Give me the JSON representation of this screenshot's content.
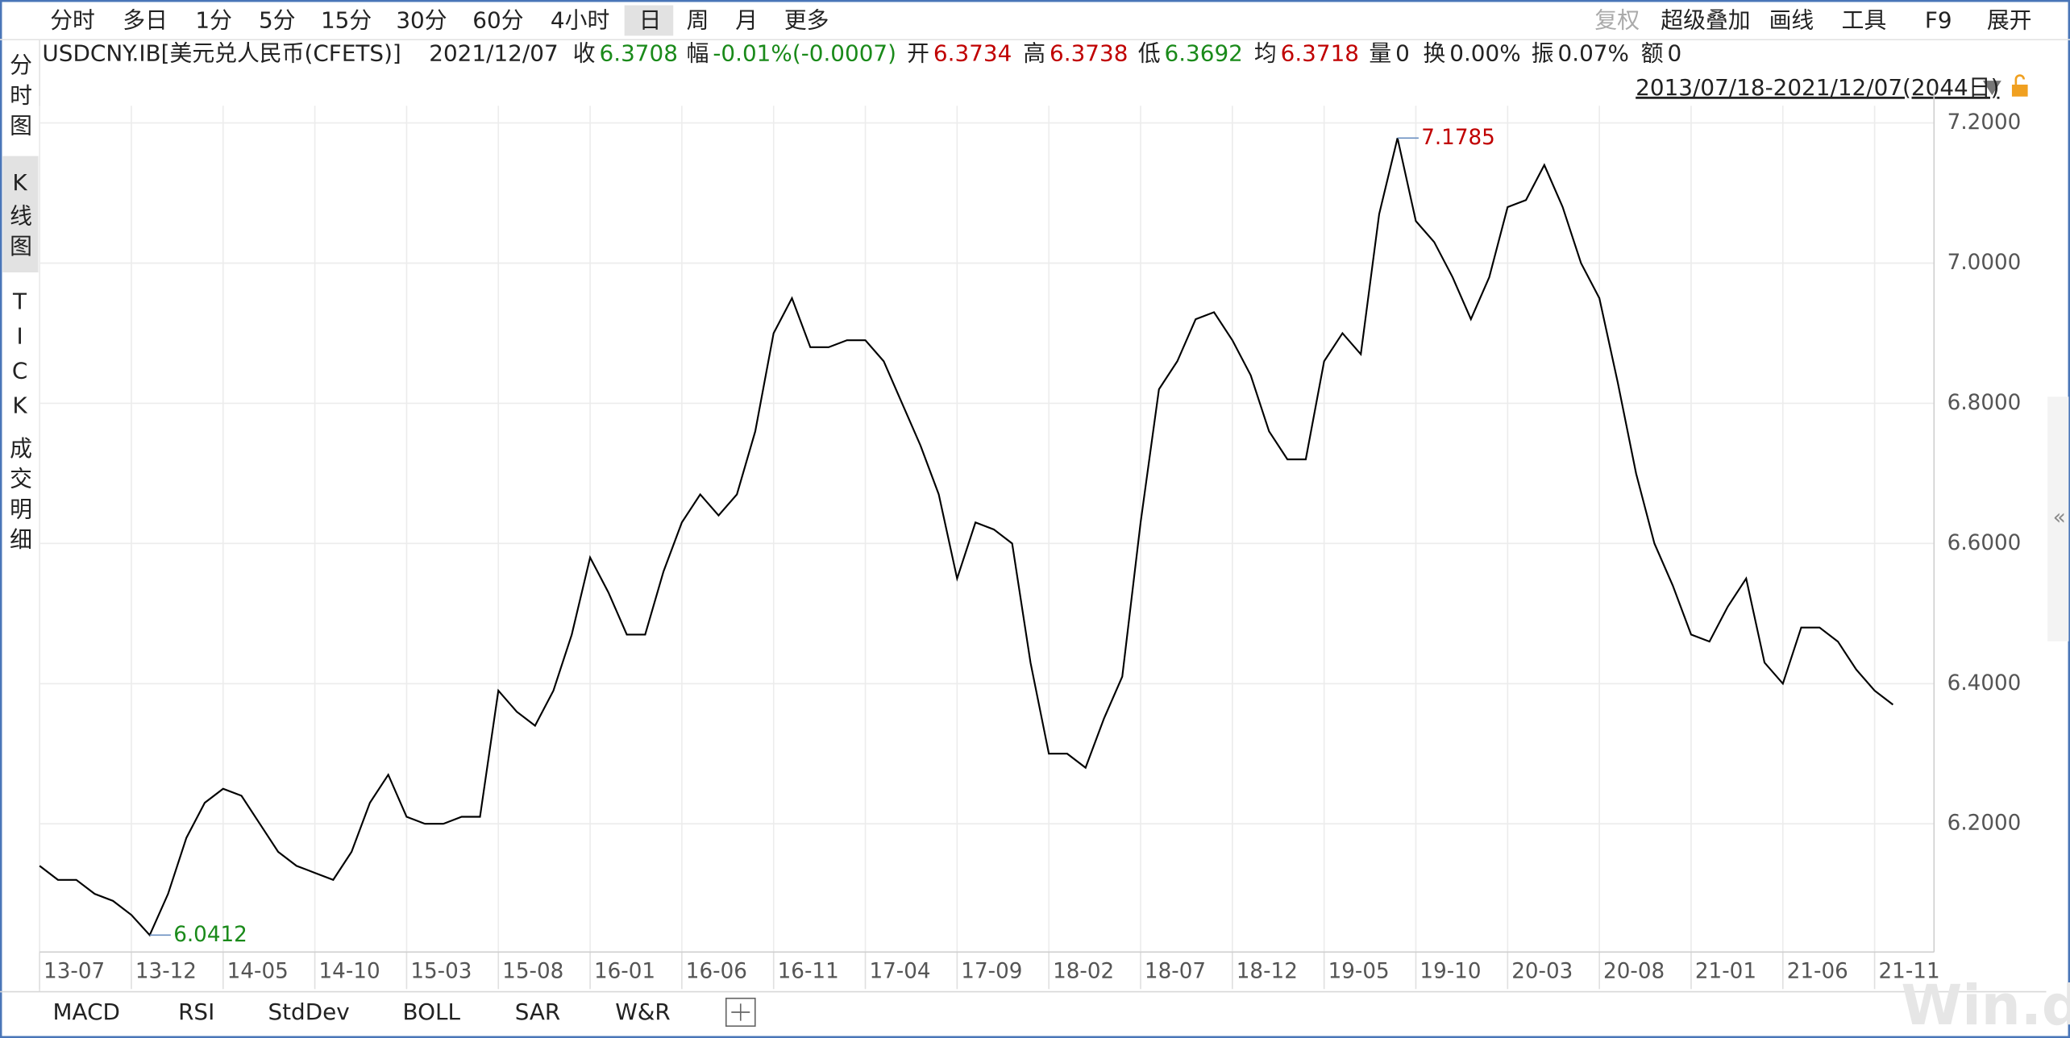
{
  "toolbar": {
    "periods": [
      "分时",
      "多日",
      "1分",
      "5分",
      "15分",
      "30分",
      "60分",
      "4小时",
      "日",
      "周",
      "月",
      "更多"
    ],
    "tools": [
      "复权",
      "超级叠加",
      "画线",
      "工具",
      "F9",
      "展开"
    ]
  },
  "side_tabs": [
    "分时图",
    "K线图",
    "TICK",
    "成交明细"
  ],
  "info": {
    "security": "USDCNY.IB[美元兑人民币(CFETS)]",
    "date": "2021/12/07",
    "fields": [
      {
        "label": "收",
        "value": "6.3708",
        "color": "#1a8a1a"
      },
      {
        "label": "幅",
        "value": "-0.01%(-0.0007)",
        "color": "#1a8a1a"
      },
      {
        "label": "开",
        "value": "6.3734",
        "color": "#c00000"
      },
      {
        "label": "高",
        "value": "6.3738",
        "color": "#c00000"
      },
      {
        "label": "低",
        "value": "6.3692",
        "color": "#1a8a1a"
      },
      {
        "label": "均",
        "value": "6.3718",
        "color": "#c00000"
      },
      {
        "label": "量",
        "value": "0",
        "color": "#222222"
      },
      {
        "label": "换",
        "value": "0.00%",
        "color": "#222222"
      },
      {
        "label": "振",
        "value": "0.07%",
        "color": "#222222"
      },
      {
        "label": "额",
        "value": "0",
        "color": "#222222"
      }
    ],
    "range": "2013/07/18-2021/12/07(2044日)"
  },
  "chart_data": {
    "type": "line",
    "x": [
      "13-07",
      "13-08",
      "13-09",
      "13-10",
      "13-11",
      "13-12",
      "14-01",
      "14-02",
      "14-03",
      "14-04",
      "14-05",
      "14-06",
      "14-07",
      "14-08",
      "14-09",
      "14-10",
      "14-11",
      "14-12",
      "15-01",
      "15-02",
      "15-03",
      "15-04",
      "15-05",
      "15-06",
      "15-07",
      "15-08",
      "15-09",
      "15-10",
      "15-11",
      "15-12",
      "16-01",
      "16-02",
      "16-03",
      "16-04",
      "16-05",
      "16-06",
      "16-07",
      "16-08",
      "16-09",
      "16-10",
      "16-11",
      "16-12",
      "17-01",
      "17-02",
      "17-03",
      "17-04",
      "17-05",
      "17-06",
      "17-07",
      "17-08",
      "17-09",
      "17-10",
      "17-11",
      "17-12",
      "18-01",
      "18-02",
      "18-03",
      "18-04",
      "18-05",
      "18-06",
      "18-07",
      "18-08",
      "18-09",
      "18-10",
      "18-11",
      "18-12",
      "19-01",
      "19-02",
      "19-03",
      "19-04",
      "19-05",
      "19-06",
      "19-07",
      "19-08",
      "19-09",
      "19-10",
      "19-11",
      "19-12",
      "20-01",
      "20-02",
      "20-03",
      "20-04",
      "20-05",
      "20-06",
      "20-07",
      "20-08",
      "20-09",
      "20-10",
      "20-11",
      "20-12",
      "21-01",
      "21-02",
      "21-03",
      "21-04",
      "21-05",
      "21-06",
      "21-07",
      "21-08",
      "21-09",
      "21-10",
      "21-11",
      "21-12"
    ],
    "series": [
      {
        "name": "USDCNY.IB",
        "color": "#000000",
        "values": [
          6.14,
          6.12,
          6.12,
          6.1,
          6.09,
          6.07,
          6.0412,
          6.1,
          6.18,
          6.23,
          6.25,
          6.24,
          6.2,
          6.16,
          6.14,
          6.13,
          6.12,
          6.16,
          6.23,
          6.27,
          6.21,
          6.2,
          6.2,
          6.21,
          6.21,
          6.39,
          6.36,
          6.34,
          6.39,
          6.47,
          6.58,
          6.53,
          6.47,
          6.47,
          6.56,
          6.63,
          6.67,
          6.64,
          6.67,
          6.76,
          6.9,
          6.95,
          6.88,
          6.88,
          6.89,
          6.89,
          6.86,
          6.8,
          6.74,
          6.67,
          6.55,
          6.63,
          6.62,
          6.6,
          6.43,
          6.3,
          6.3,
          6.28,
          6.35,
          6.41,
          6.63,
          6.82,
          6.86,
          6.92,
          6.93,
          6.89,
          6.84,
          6.76,
          6.72,
          6.72,
          6.86,
          6.9,
          6.87,
          7.07,
          7.1785,
          7.06,
          7.03,
          6.98,
          6.92,
          6.98,
          7.08,
          7.09,
          7.14,
          7.08,
          7.0,
          6.95,
          6.83,
          6.7,
          6.6,
          6.54,
          6.47,
          6.46,
          6.51,
          6.55,
          6.43,
          6.4,
          6.48,
          6.48,
          6.46,
          6.42,
          6.39,
          6.37
        ]
      }
    ],
    "annotations": [
      {
        "x": "19-09",
        "value": 7.1785,
        "color": "#c00000"
      },
      {
        "x": "14-01",
        "value": 6.0412,
        "color": "#1a8a1a"
      }
    ],
    "ylim": [
      6.017,
      7.2245
    ],
    "yticks": [
      {
        "value": 6.2,
        "label": "6.2000"
      },
      {
        "value": 6.4,
        "label": "6.4000"
      },
      {
        "value": 6.6,
        "label": "6.6000"
      },
      {
        "value": 6.8,
        "label": "6.8000"
      },
      {
        "value": 7.0,
        "label": "7.0000"
      },
      {
        "value": 7.2,
        "label": "7.2000"
      }
    ],
    "grid": true
  },
  "indicator_tabs": [
    "MACD",
    "RSI",
    "StdDev",
    "BOLL",
    "SAR",
    "W&R"
  ],
  "watermark": "Win.d"
}
